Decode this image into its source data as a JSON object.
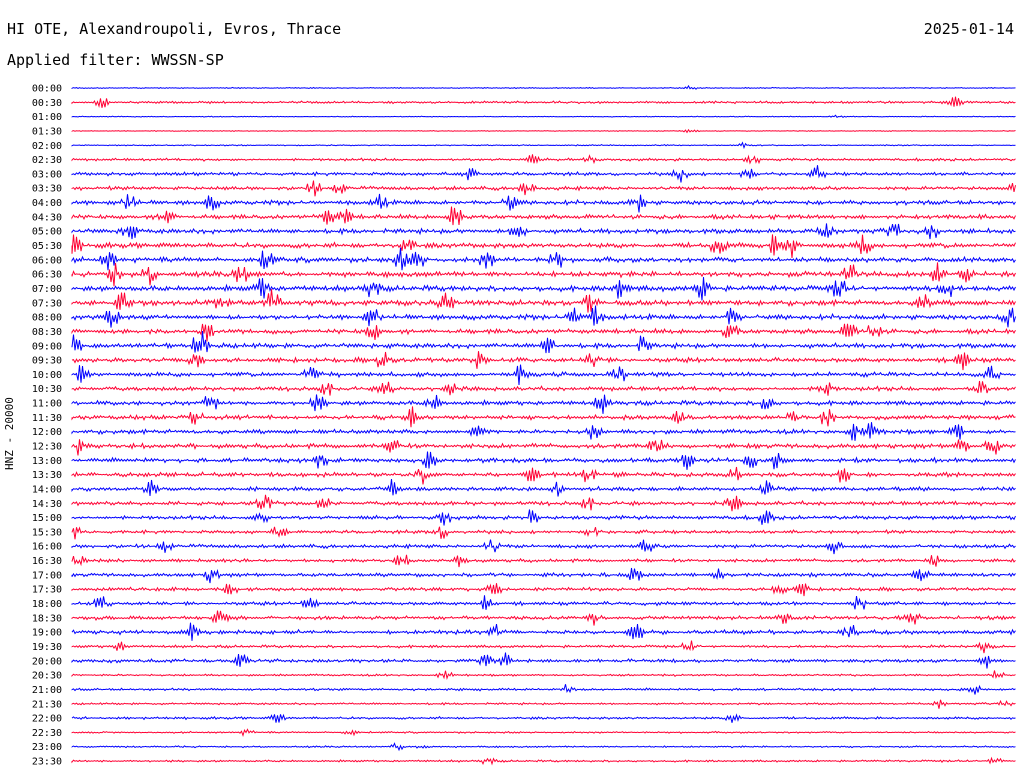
{
  "header": {
    "station": "HI OTE, Alexandroupoli, Evros, Thrace",
    "date": "2025-01-14",
    "filter": "Applied filter: WWSSN-SP"
  },
  "chart_data": {
    "type": "line",
    "title": "HI OTE, Alexandroupoli, Evros, Thrace",
    "ylabel": "HNZ - 20000",
    "colors": {
      "even": "#0000ff",
      "odd": "#ff0033",
      "text": "#000000"
    },
    "rows": [
      {
        "time": "00:00",
        "amp": 0.6
      },
      {
        "time": "00:30",
        "amp": 1.4
      },
      {
        "time": "01:00",
        "amp": 0.5
      },
      {
        "time": "01:30",
        "amp": 0.5
      },
      {
        "time": "02:00",
        "amp": 0.7
      },
      {
        "time": "02:30",
        "amp": 1.5
      },
      {
        "time": "03:00",
        "amp": 2.0
      },
      {
        "time": "03:30",
        "amp": 2.2
      },
      {
        "time": "04:00",
        "amp": 2.6
      },
      {
        "time": "04:30",
        "amp": 2.6
      },
      {
        "time": "05:00",
        "amp": 2.8
      },
      {
        "time": "05:30",
        "amp": 3.0
      },
      {
        "time": "06:00",
        "amp": 3.0
      },
      {
        "time": "06:30",
        "amp": 3.2
      },
      {
        "time": "07:00",
        "amp": 3.2
      },
      {
        "time": "07:30",
        "amp": 3.2
      },
      {
        "time": "08:00",
        "amp": 3.0
      },
      {
        "time": "08:30",
        "amp": 2.8
      },
      {
        "time": "09:00",
        "amp": 2.8
      },
      {
        "time": "09:30",
        "amp": 2.8
      },
      {
        "time": "10:00",
        "amp": 2.6
      },
      {
        "time": "10:30",
        "amp": 2.5
      },
      {
        "time": "11:00",
        "amp": 2.6
      },
      {
        "time": "11:30",
        "amp": 2.6
      },
      {
        "time": "12:00",
        "amp": 2.6
      },
      {
        "time": "12:30",
        "amp": 2.8
      },
      {
        "time": "13:00",
        "amp": 2.6
      },
      {
        "time": "13:30",
        "amp": 2.6
      },
      {
        "time": "14:00",
        "amp": 2.4
      },
      {
        "time": "14:30",
        "amp": 2.4
      },
      {
        "time": "15:00",
        "amp": 2.2
      },
      {
        "time": "15:30",
        "amp": 2.0
      },
      {
        "time": "16:00",
        "amp": 2.2
      },
      {
        "time": "16:30",
        "amp": 2.0
      },
      {
        "time": "17:00",
        "amp": 2.2
      },
      {
        "time": "17:30",
        "amp": 2.0
      },
      {
        "time": "18:00",
        "amp": 2.2
      },
      {
        "time": "18:30",
        "amp": 2.2
      },
      {
        "time": "19:00",
        "amp": 2.4
      },
      {
        "time": "19:30",
        "amp": 1.6
      },
      {
        "time": "20:00",
        "amp": 2.0
      },
      {
        "time": "20:30",
        "amp": 1.2
      },
      {
        "time": "21:00",
        "amp": 1.4
      },
      {
        "time": "21:30",
        "amp": 1.2
      },
      {
        "time": "22:00",
        "amp": 1.4
      },
      {
        "time": "22:30",
        "amp": 1.0
      },
      {
        "time": "23:00",
        "amp": 1.0
      },
      {
        "time": "23:30",
        "amp": 1.2
      }
    ]
  }
}
